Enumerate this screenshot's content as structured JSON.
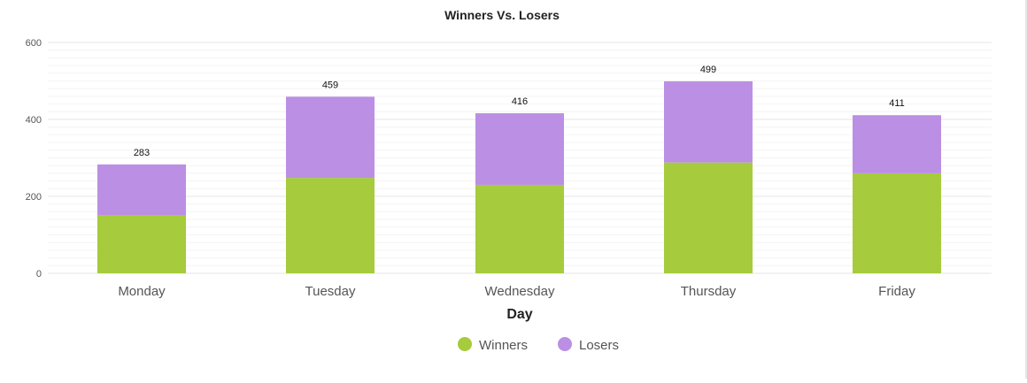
{
  "chart_data": {
    "type": "bar",
    "stacked": true,
    "title": "Winners Vs. Losers",
    "xlabel": "Day",
    "ylabel": "",
    "categories": [
      "Monday",
      "Tuesday",
      "Wednesday",
      "Thursday",
      "Friday"
    ],
    "series": [
      {
        "name": "Winners",
        "color": "#a6cb3c",
        "values": [
          150,
          248,
          230,
          288,
          260
        ]
      },
      {
        "name": "Losers",
        "color": "#bb8fe3",
        "values": [
          133,
          211,
          186,
          211,
          151
        ]
      }
    ],
    "totals": [
      "283",
      "459",
      "416",
      "499",
      "411"
    ],
    "ylim": [
      0,
      600
    ],
    "yticks": [
      "0",
      "200",
      "400",
      "600"
    ],
    "grid": true,
    "legend": "bottom-center"
  }
}
